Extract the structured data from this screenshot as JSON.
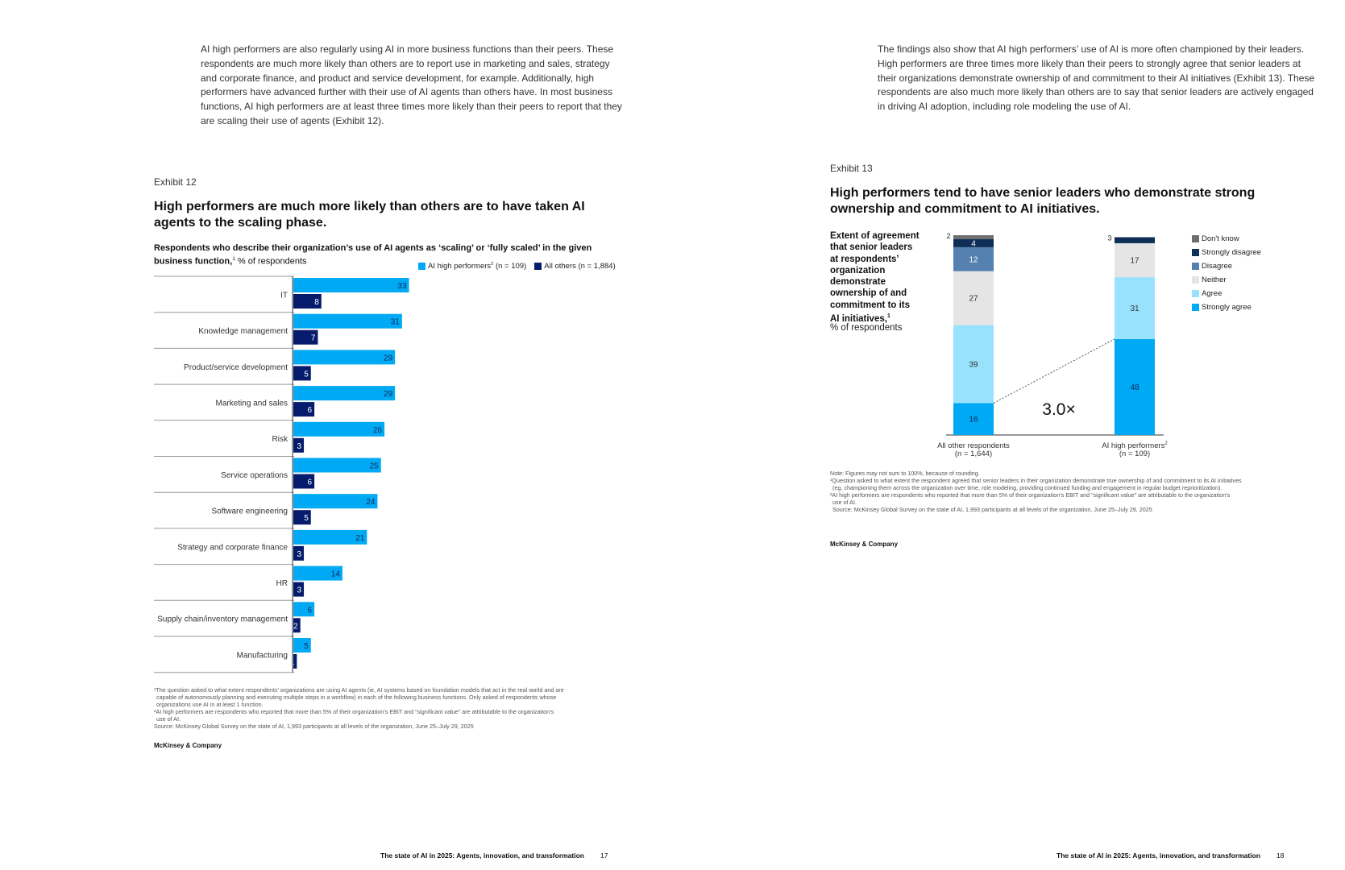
{
  "left_page": {
    "body_text": "AI high performers are also regularly using AI in more business functions than their peers. These respondents are much more likely than others are to report use in marketing and sales, strategy and corporate finance, and product and service development, for example. Additionally, high performers have advanced further with their use of AI agents than others have. In most business functions, AI high performers are at least three times more likely than their peers to report that they are scaling their use of agents (Exhibit 12).",
    "exhibit_label": "Exhibit 12",
    "exhibit_title": "High performers are much more likely than others are to have taken AI agents to the scaling phase.",
    "subtitle_bold": "Respondents who describe their organization’s use of AI agents as ‘scaling’ or ‘fully scaled’ in the given business function,",
    "subtitle_sup": "1",
    "subtitle_unit": " % of respondents",
    "legend": [
      {
        "label": "AI high performers",
        "sup": "2",
        "suffix": " (n = 109)",
        "color": "#00A9F4"
      },
      {
        "label": "All others (n = 1,884)",
        "sup": "",
        "suffix": "",
        "color": "#051C6C"
      }
    ],
    "notes": [
      "¹The question asked to what extent respondents’ organizations are using AI agents (ie, AI systems based on foundation models that act in the real world and are",
      "capable of autonomously planning and executing multiple steps in a workflow) in each of the following business functions. Only asked of respondents whose",
      "organizations use AI in at least 1 function.",
      "²AI high performers are respondents who reported that more than 5% of their organization’s EBIT and “significant value” are attributable to the organization’s",
      "use of AI.",
      "Source: McKinsey Global Survey on the state of AI, 1,993 participants at all levels of the organization, June 25–July 29, 2025"
    ],
    "brand": "McKinsey & Company",
    "footer_title": "The state of AI in 2025: Agents, innovation, and transformation",
    "page_number": "17"
  },
  "right_page": {
    "body_text": "The findings also show that AI high performers’ use of AI is more often championed by their leaders. High performers are three times more likely than their peers to strongly agree that senior leaders at their organizations demonstrate ownership of and commitment to their AI initiatives (Exhibit 13). These respondents are also much more likely than others are to say that senior leaders are actively engaged in driving AI adoption, including role modeling the use of AI.",
    "exhibit_label": "Exhibit 13",
    "exhibit_title": "High performers tend to have senior leaders who demonstrate strong ownership and commitment to AI initiatives.",
    "question_lines": [
      "Extent of agreement",
      "that senior leaders",
      "at respondents’",
      "organization",
      "demonstrate",
      "ownership of and",
      "commitment to its",
      "AI initiatives,"
    ],
    "question_sup": "1",
    "question_unit": "% of respondents",
    "multiplier": "3.0×",
    "notes": [
      "Note: Figures may not sum to 100%, because of rounding.",
      "¹Question asked to what extent the respondent agreed that senior leaders in their organization demonstrate true ownership of and commitment to its AI initiatives",
      "(eg, championing them across the organization over time, role modeling, providing continued funding and engagement in regular budget reprioritization).",
      "²AI high performers are respondents who reported that more than 5% of their organization’s EBIT and “significant value” are attributable to the organization’s",
      "use of AI.",
      "Source: McKinsey Global Survey on the state of AI, 1,993 participants at all levels of the organization, June 25–July 29, 2025"
    ],
    "brand": "McKinsey & Company",
    "footer_title": "The state of AI in 2025: Agents, innovation, and transformation",
    "page_number": "18"
  },
  "chart_data": [
    {
      "type": "bar",
      "orientation": "horizontal",
      "categories": [
        "IT",
        "Knowledge management",
        "Product/service development",
        "Marketing and sales",
        "Risk",
        "Service operations",
        "Software engineering",
        "Strategy and corporate finance",
        "HR",
        "Supply chain/inventory management",
        "Manufacturing"
      ],
      "series": [
        {
          "name": "AI high performers (n = 109)",
          "color": "#00A9F4",
          "values": [
            33,
            31,
            29,
            29,
            26,
            25,
            24,
            21,
            14,
            6,
            5
          ]
        },
        {
          "name": "All others (n = 1,884)",
          "color": "#051C6C",
          "values": [
            8,
            7,
            5,
            6,
            3,
            6,
            5,
            3,
            3,
            2,
            1
          ]
        }
      ],
      "title": "High performers are much more likely than others are to have taken AI agents to the scaling phase.",
      "xlim": [
        0,
        100
      ]
    },
    {
      "type": "bar",
      "stacked": true,
      "categories": [
        {
          "label": "All other respondents",
          "sub": "(n = 1,644)",
          "sup": ""
        },
        {
          "label": "AI high performers",
          "sub": "(n = 109)",
          "sup": "2"
        }
      ],
      "series": [
        {
          "name": "Strongly agree",
          "color": "#00A9F4",
          "text_color": "#0B2A5A",
          "values": [
            16,
            48
          ]
        },
        {
          "name": "Agree",
          "color": "#99E2FE",
          "text_color": "#333333",
          "values": [
            39,
            31
          ]
        },
        {
          "name": "Neither",
          "color": "#E5E5E5",
          "text_color": "#333333",
          "values": [
            27,
            17
          ]
        },
        {
          "name": "Disagree",
          "color": "#5481B0",
          "text_color": "#FFFFFF",
          "values": [
            12,
            0
          ]
        },
        {
          "name": "Strongly disagree",
          "color": "#0E2E55",
          "text_color": "#FFFFFF",
          "values": [
            4,
            3
          ]
        },
        {
          "name": "Don't know",
          "color": "#6E6E6E",
          "text_color": "#333333",
          "values": [
            2,
            0
          ]
        }
      ],
      "legend_order": [
        "Don't know",
        "Strongly disagree",
        "Disagree",
        "Neither",
        "Agree",
        "Strongly agree"
      ],
      "annotation": "3.0×",
      "ylim": [
        0,
        100
      ],
      "title": "High performers tend to have senior leaders who demonstrate strong ownership and commitment to AI initiatives."
    }
  ]
}
